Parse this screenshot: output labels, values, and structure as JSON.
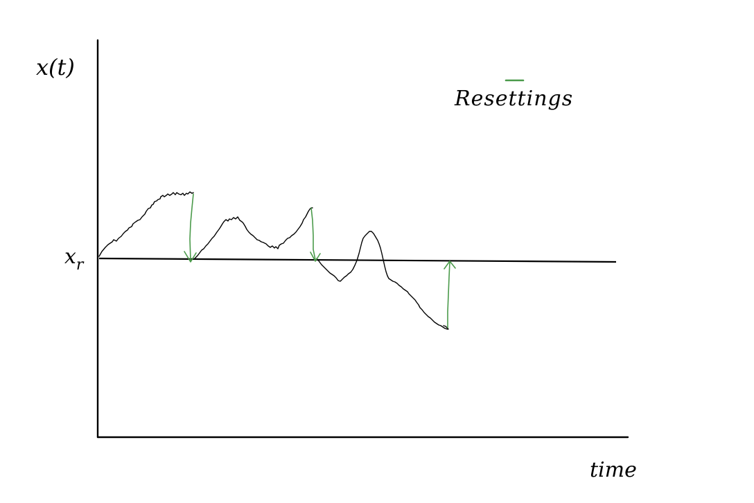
{
  "labels": {
    "y_axis": "x(t)",
    "x_axis": "time",
    "reset_level_main": "x",
    "reset_level_sub": "r",
    "legend": "Resettings"
  },
  "colors": {
    "axes": "#000000",
    "trajectory": "#000000",
    "resetting": "#4a9a4a",
    "background": "#ffffff"
  },
  "resettings": [
    {
      "direction": "down"
    },
    {
      "direction": "down"
    },
    {
      "direction": "up"
    }
  ]
}
